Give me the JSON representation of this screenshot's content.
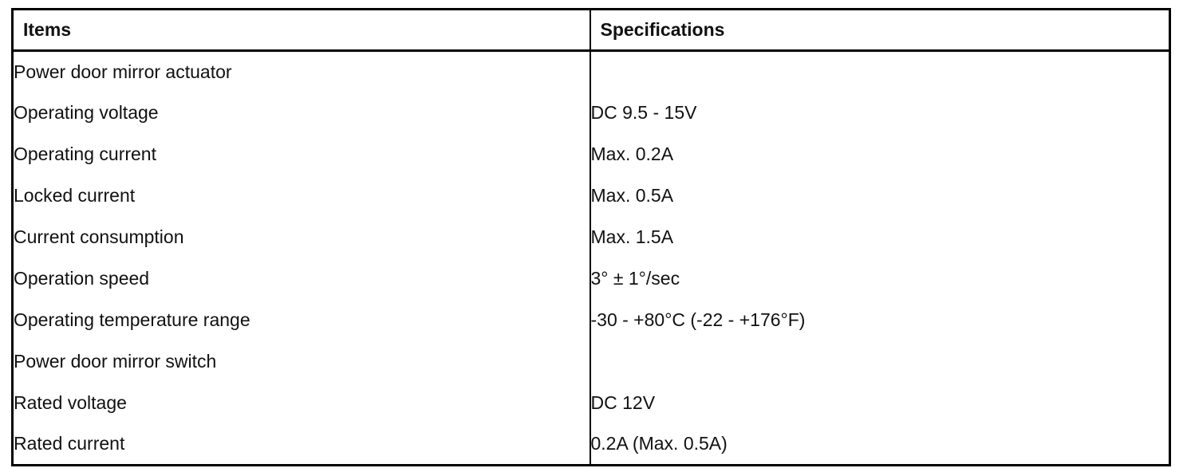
{
  "table": {
    "header": [
      "Items",
      "Specifications"
    ],
    "groups": [
      {
        "title": "Power door mirror actuator",
        "rows": [
          {
            "item": "Operating voltage",
            "spec": "DC 9.5 - 15V"
          },
          {
            "item": "Operating current",
            "spec": "Max. 0.2A"
          },
          {
            "item": "Locked current",
            "spec": "Max. 0.5A"
          },
          {
            "item": "Current consumption",
            "spec": "Max. 1.5A"
          },
          {
            "item": "Operation speed",
            "spec": "3° ± 1°/sec"
          },
          {
            "item": "Operating temperature range",
            "spec": "-30 - +80°C (-22 - +176°F)"
          }
        ]
      },
      {
        "title": "Power door mirror switch",
        "rows": [
          {
            "item": "Rated voltage",
            "spec": "DC 12V"
          },
          {
            "item": "Rated current",
            "spec": "0.2A (Max. 0.5A)"
          }
        ]
      }
    ]
  }
}
